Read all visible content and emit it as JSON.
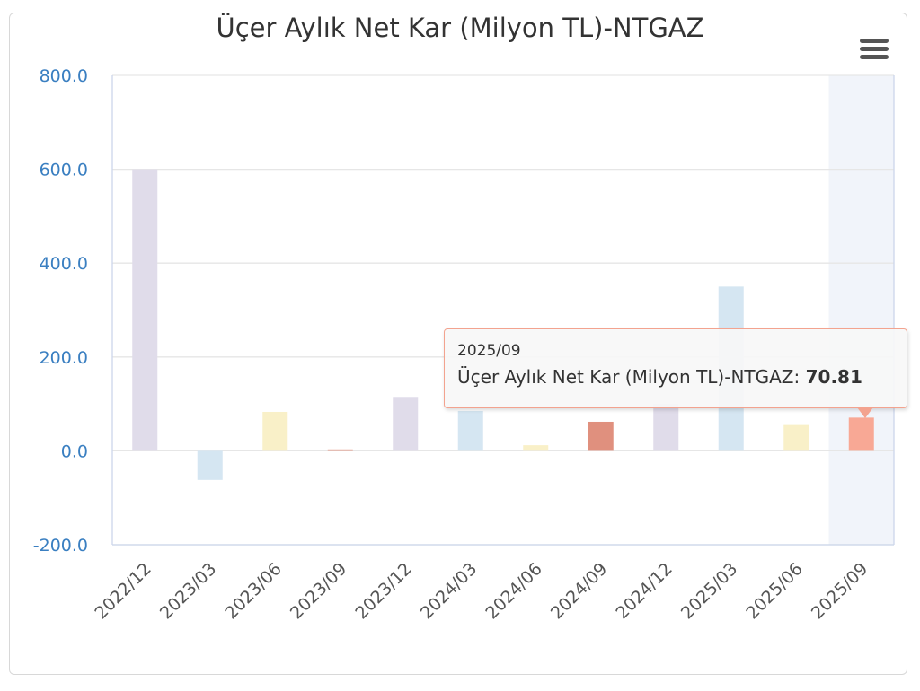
{
  "chart_data": {
    "type": "bar",
    "title": "Üçer Aylık Net Kar (Milyon TL)-NTGAZ",
    "xlabel": "",
    "ylabel": "",
    "ylim": [
      -200,
      800
    ],
    "yticks": [
      -200,
      0,
      200,
      400,
      600,
      800
    ],
    "ytick_labels": [
      "-200.0",
      "0.0",
      "200.0",
      "400.0",
      "600.0",
      "800.0"
    ],
    "grid": true,
    "legend": "none",
    "categories": [
      "2022/12",
      "2023/03",
      "2023/06",
      "2023/09",
      "2023/12",
      "2024/03",
      "2024/06",
      "2024/09",
      "2024/12",
      "2025/03",
      "2025/06",
      "2025/09"
    ],
    "series": [
      {
        "values": [
          600,
          -62,
          83,
          3,
          115,
          85,
          12,
          62,
          100,
          350,
          55,
          70.81
        ],
        "colors": [
          "#e0dcea",
          "#d5e6f2",
          "#f9f0c8",
          "#e0806a",
          "#e0dcea",
          "#d5e6f2",
          "#f9f0c8",
          "#e0907e",
          "#e0dcea",
          "#d5e6f2",
          "#f9f0c8",
          "#f8a895"
        ]
      }
    ],
    "highlighted_category": "2025/09",
    "tooltip": {
      "x": "2025/09",
      "series_label": "Üçer Aylık Net Kar (Milyon TL)-NTGAZ: ",
      "value": "70.81"
    }
  },
  "colors": {
    "axis_label": "#3a7fc1",
    "grid": "#e6e6e6",
    "highlight_band": "#f1f4fa"
  },
  "toolbar": {
    "menu_icon": "hamburger-icon"
  }
}
